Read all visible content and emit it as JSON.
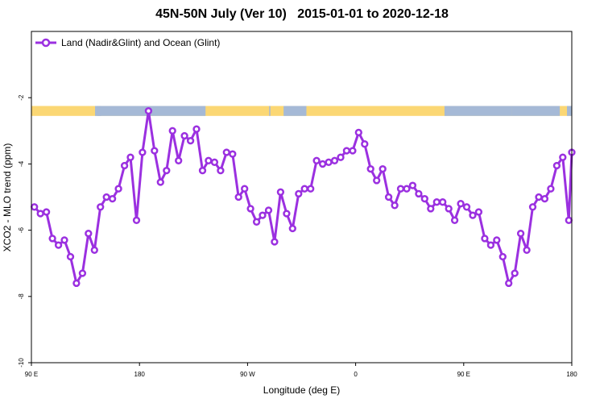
{
  "chart_data": {
    "type": "line",
    "title": "45N-50N July (Ver 10)   2015-01-01 to 2020-12-18",
    "xlabel": "Longitude (deg E)",
    "ylabel": "XCO2 - MLO trend (ppm)",
    "x_ticks": [
      {
        "value": 90,
        "label": "90 E"
      },
      {
        "value": 180,
        "label": "180"
      },
      {
        "value": 270,
        "label": "90 W"
      },
      {
        "value": 360,
        "label": "0"
      },
      {
        "value": 450,
        "label": "90 E"
      },
      {
        "value": 540,
        "label": "180"
      }
    ],
    "y_ticks": [
      {
        "value": -10,
        "label": "-10"
      },
      {
        "value": -8,
        "label": "-8"
      },
      {
        "value": -6,
        "label": "-6"
      },
      {
        "value": -4,
        "label": "-4"
      },
      {
        "value": -2,
        "label": "-2"
      }
    ],
    "xlim": [
      90,
      540
    ],
    "ylim": [
      -10,
      0
    ],
    "grid": false,
    "legend_position": "top-left",
    "surface_band": {
      "y_range": [
        -2.55,
        -2.25
      ],
      "land_color": "#fbd774",
      "ocean_color": "#a5b9d6",
      "ocean_lon_ranges": [
        [
          143,
          148
        ],
        [
          145,
          235
        ],
        [
          288,
          289
        ],
        [
          300,
          319
        ],
        [
          434,
          490
        ],
        [
          490,
          530
        ],
        [
          536,
          540
        ]
      ]
    },
    "series": [
      {
        "name": "Land (Nadir&Glint) and Ocean (Glint)",
        "color": "#9b30e0",
        "x": [
          92.5,
          97.5,
          102.5,
          107.5,
          112.5,
          117.5,
          122.5,
          127.5,
          132.5,
          137.5,
          142.5,
          147.5,
          152.5,
          157.5,
          162.5,
          167.5,
          172.5,
          177.5,
          182.5,
          187.5,
          192.5,
          197.5,
          202.5,
          207.5,
          212.5,
          217.5,
          222.5,
          227.5,
          232.5,
          237.5,
          242.5,
          247.5,
          252.5,
          257.5,
          262.5,
          267.5,
          272.5,
          277.5,
          282.5,
          287.5,
          292.5,
          297.5,
          302.5,
          307.5,
          312.5,
          317.5,
          322.5,
          327.5,
          332.5,
          337.5,
          342.5,
          347.5,
          352.5,
          357.5,
          362.5,
          367.5,
          372.5,
          377.5,
          382.5,
          387.5,
          392.5,
          397.5,
          402.5,
          407.5,
          412.5,
          417.5,
          422.5,
          427.5,
          432.5,
          437.5,
          442.5,
          447.5,
          452.5,
          457.5,
          462.5,
          467.5,
          472.5,
          477.5,
          482.5,
          487.5,
          492.5,
          497.5,
          502.5,
          507.5,
          512.5,
          517.5,
          522.5,
          527.5,
          532.5,
          537.5,
          542.5
        ],
        "y": [
          -5.3,
          -5.5,
          -5.45,
          -6.25,
          -6.45,
          -6.3,
          -6.8,
          -7.6,
          -7.3,
          -6.1,
          -6.6,
          -5.3,
          -5.0,
          -5.05,
          -4.75,
          -4.05,
          -3.8,
          -5.7,
          -3.65,
          -2.4,
          -3.6,
          -4.55,
          -4.2,
          -3.0,
          -3.9,
          -3.15,
          -3.3,
          -2.95,
          -4.2,
          -3.9,
          -3.95,
          -4.2,
          -3.65,
          -3.7,
          -5.0,
          -4.75,
          -5.35,
          -5.75,
          -5.55,
          -5.4,
          -6.35,
          -4.85,
          -5.5,
          -5.95,
          -4.9,
          -4.75,
          -4.75,
          -3.9,
          -4.0,
          -3.95,
          -3.9,
          -3.8,
          -3.6,
          -3.6,
          -3.05,
          -3.4,
          -4.15,
          -4.5,
          -4.15,
          -5.0,
          -5.25,
          -4.75,
          -4.75,
          -4.65,
          -4.9,
          -5.05,
          -5.35,
          -5.15,
          -5.15,
          -5.35,
          -5.7,
          -5.2,
          -5.3,
          -5.55,
          -5.45,
          -6.25,
          -6.45,
          -6.3,
          -6.8,
          -7.6,
          -7.3,
          -6.1,
          -6.6,
          -5.3,
          -5.0,
          -5.05,
          -4.75,
          -4.05,
          -3.8,
          -5.7,
          -3.65
        ]
      }
    ]
  }
}
